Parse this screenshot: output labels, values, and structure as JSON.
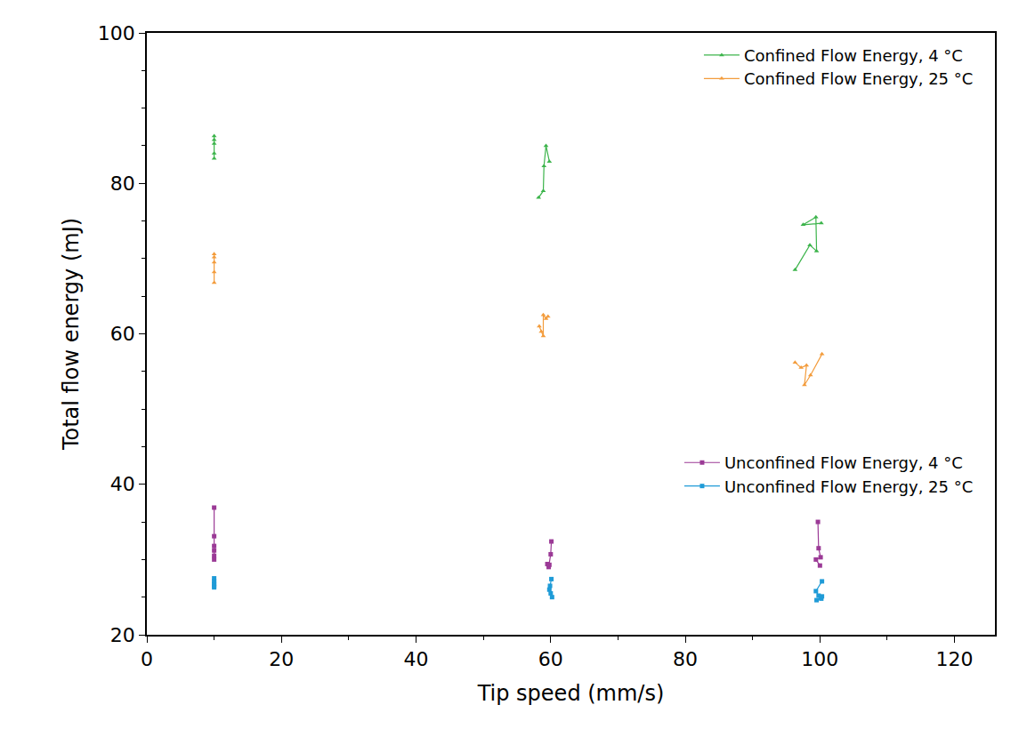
{
  "chart_data": {
    "type": "line",
    "x_label": "Tip speed (mm/s)",
    "y_label": "Total flow energy (mJ)",
    "xlim": [
      0,
      126
    ],
    "xticks": [
      0,
      20,
      40,
      60,
      80,
      100,
      120
    ],
    "ylim": [
      20,
      100
    ],
    "yticks": [
      20,
      40,
      60,
      80,
      100
    ],
    "grid": false,
    "legend": "upper right",
    "series": [
      {
        "name": "Confined Flow Energy, 4 °C",
        "color": "#3cb44b",
        "marker": "triangle-up",
        "x": [
          10,
          10,
          10,
          10,
          10,
          null,
          58.2,
          58.9,
          59.0,
          59.3,
          59.8,
          null,
          96.3,
          98.5,
          99.5,
          99.4,
          97.5,
          100.2
        ],
        "values": [
          86.3,
          85.8,
          85.3,
          84.0,
          83.3,
          null,
          78.1,
          79.0,
          82.3,
          85.0,
          82.9,
          null,
          68.5,
          71.8,
          71.0,
          75.5,
          74.5,
          74.7
        ]
      },
      {
        "name": "Confined Flow Energy, 25 °C",
        "color": "#f39c3c",
        "marker": "triangle-up",
        "x": [
          10,
          10,
          10,
          10,
          10,
          null,
          58.3,
          58.6,
          58.9,
          58.9,
          59.3,
          59.6,
          null,
          96.3,
          97.2,
          98.0,
          97.7,
          98.6,
          100.3
        ],
        "values": [
          70.6,
          70.2,
          69.5,
          68.2,
          66.8,
          null,
          61.0,
          60.3,
          59.7,
          62.5,
          62.0,
          62.3,
          null,
          56.2,
          55.5,
          55.8,
          53.2,
          54.5,
          57.3
        ]
      },
      {
        "name": "Unconfined Flow Energy, 4 °C",
        "color": "#9b3a96",
        "marker": "square",
        "x": [
          10,
          10,
          10,
          10,
          10,
          10,
          null,
          60.1,
          60.0,
          59.7,
          59.5,
          59.8,
          null,
          99.7,
          99.8,
          100.1,
          99.4,
          100.0
        ],
        "values": [
          36.9,
          33.1,
          31.8,
          31.2,
          30.5,
          30.0,
          null,
          32.4,
          30.7,
          29.0,
          29.4,
          29.3,
          null,
          35.0,
          31.5,
          30.3,
          30.0,
          29.2
        ]
      },
      {
        "name": "Unconfined Flow Energy, 25 °C",
        "color": "#1f9bd7",
        "marker": "square",
        "x": [
          10,
          10,
          10,
          10,
          10,
          null,
          60.1,
          59.9,
          59.8,
          60.0,
          60.2,
          null,
          100.3,
          99.4,
          99.8,
          100.2,
          99.5,
          100.3
        ],
        "values": [
          27.5,
          27.1,
          26.8,
          26.5,
          26.3,
          null,
          27.4,
          26.5,
          26.0,
          25.5,
          25.0,
          null,
          27.1,
          25.8,
          25.2,
          24.8,
          24.6,
          25.1
        ]
      }
    ]
  }
}
